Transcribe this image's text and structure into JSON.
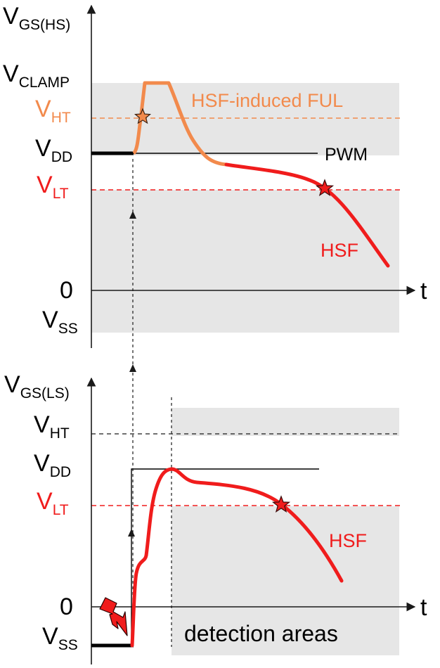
{
  "top_panel": {
    "y_axis": {
      "base": "V",
      "sub": "GS(HS)"
    },
    "x_axis": "t",
    "levels": {
      "clamp": {
        "base": "V",
        "sub": "CLAMP"
      },
      "ht": {
        "base": "V",
        "sub": "HT"
      },
      "dd": {
        "base": "V",
        "sub": "DD"
      },
      "lt": {
        "base": "V",
        "sub": "LT"
      },
      "zero": "0",
      "ss": {
        "base": "V",
        "sub": "SS"
      }
    },
    "annotations": {
      "ful": "HSF-induced FUL",
      "pwm": "PWM",
      "hsf": "HSF"
    }
  },
  "bottom_panel": {
    "y_axis": {
      "base": "V",
      "sub": "GS(LS)"
    },
    "x_axis": "t",
    "levels": {
      "ht": {
        "base": "V",
        "sub": "HT"
      },
      "dd": {
        "base": "V",
        "sub": "DD"
      },
      "lt": {
        "base": "V",
        "sub": "LT"
      },
      "zero": "0",
      "ss": {
        "base": "V",
        "sub": "SS"
      }
    },
    "annotations": {
      "hsf": "HSF",
      "detection": "detection areas"
    }
  },
  "colors": {
    "orange": "#f28a4c",
    "red": "#f01c1c",
    "region": "#e6e6e6",
    "axis": "#1a1a1a"
  }
}
